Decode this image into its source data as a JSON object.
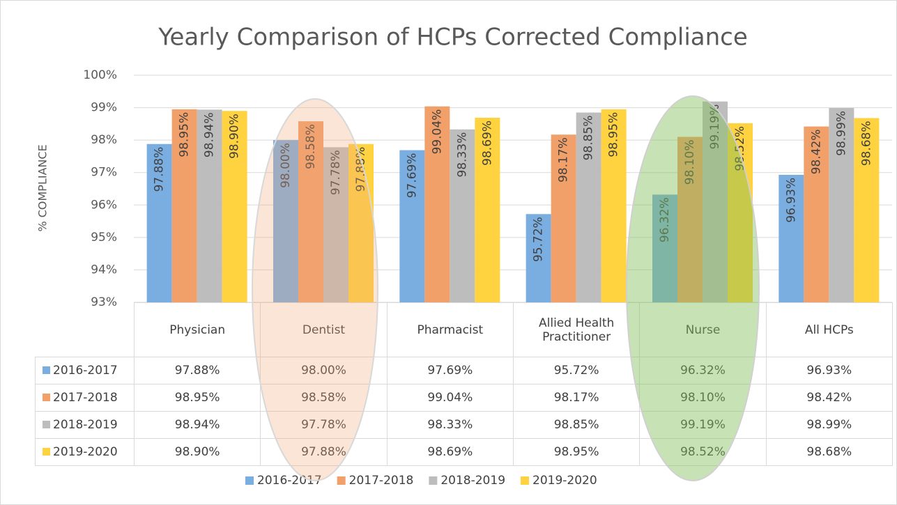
{
  "chart_data": {
    "type": "bar",
    "title": "Yearly Comparison of HCPs Corrected Compliance",
    "y_label": "% COMPLIANCE",
    "categories": [
      "Physician",
      "Dentist",
      "Pharmacist",
      "Allied Health Practitioner",
      "Nurse",
      "All HCPs"
    ],
    "series": [
      {
        "name": "2016-2017",
        "color": "#7aaee0",
        "values": [
          97.88,
          98.0,
          97.69,
          95.72,
          96.32,
          96.93
        ],
        "value_labels": [
          "97.88%",
          "98.00%",
          "97.69%",
          "95.72%",
          "96.32%",
          "96.93%"
        ]
      },
      {
        "name": "2017-2018",
        "color": "#f2a06a",
        "values": [
          98.95,
          98.58,
          99.04,
          98.17,
          98.1,
          98.42
        ],
        "value_labels": [
          "98.95%",
          "98.58%",
          "99.04%",
          "98.17%",
          "98.10%",
          "98.42%"
        ]
      },
      {
        "name": "2018-2019",
        "color": "#bdbdbd",
        "values": [
          98.94,
          97.78,
          98.33,
          98.85,
          99.19,
          98.99
        ],
        "value_labels": [
          "98.94%",
          "97.78%",
          "98.33%",
          "98.85%",
          "99.19%",
          "98.99%"
        ]
      },
      {
        "name": "2019-2020",
        "color": "#ffd23f",
        "values": [
          98.9,
          97.88,
          98.69,
          98.95,
          98.52,
          98.68
        ],
        "value_labels": [
          "98.90%",
          "97.88%",
          "98.69%",
          "98.95%",
          "98.52%",
          "98.68%"
        ]
      }
    ],
    "ylim": [
      93,
      100
    ],
    "yticks": [
      {
        "value": 93,
        "label": "93%"
      },
      {
        "value": 94,
        "label": "94%"
      },
      {
        "value": 95,
        "label": "95%"
      },
      {
        "value": 96,
        "label": "96%"
      },
      {
        "value": 97,
        "label": "97%"
      },
      {
        "value": 98,
        "label": "98%"
      },
      {
        "value": 99,
        "label": "99%"
      },
      {
        "value": 100,
        "label": "100%"
      }
    ],
    "grid": true,
    "legend": "bottom"
  }
}
